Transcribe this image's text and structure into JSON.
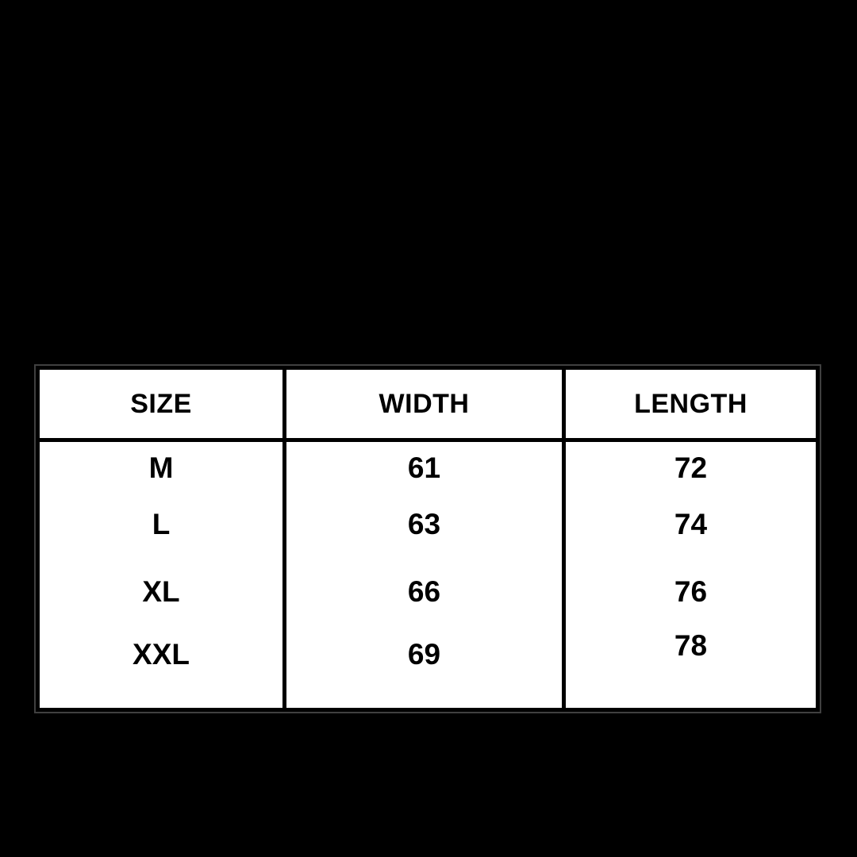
{
  "chart_data": {
    "type": "table",
    "title": "",
    "columns": [
      "SIZE",
      "WIDTH",
      "LENGTH"
    ],
    "rows": [
      [
        "M",
        61,
        72
      ],
      [
        "L",
        63,
        74
      ],
      [
        "XL",
        66,
        76
      ],
      [
        "XXL",
        69,
        78
      ]
    ]
  },
  "colors": {
    "page_background": "#000000",
    "cell_fill": "#ffffff",
    "grid_line": "#000000",
    "outer_outline": "#404040",
    "text": "#000000"
  }
}
